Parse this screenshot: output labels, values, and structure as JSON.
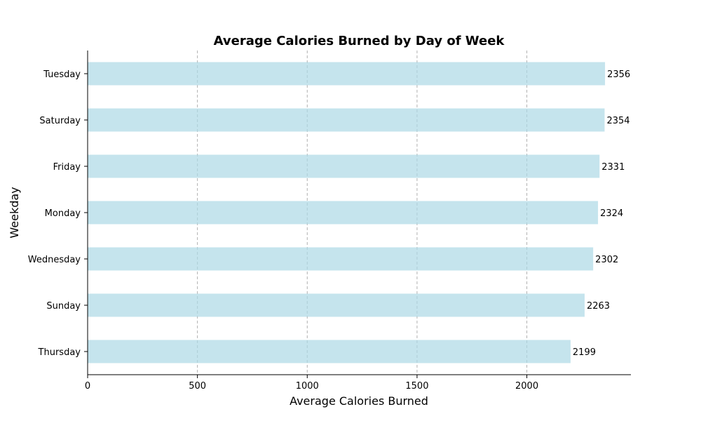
{
  "chart_data": {
    "type": "bar",
    "orientation": "horizontal",
    "title": "Average Calories Burned by Day of Week",
    "xlabel": "Average Calories Burned",
    "ylabel": "Weekday",
    "categories": [
      "Tuesday",
      "Saturday",
      "Friday",
      "Monday",
      "Wednesday",
      "Sunday",
      "Thursday"
    ],
    "values": [
      2356,
      2354,
      2331,
      2324,
      2302,
      2263,
      2199
    ],
    "data_labels": [
      "2356",
      "2354",
      "2331",
      "2324",
      "2302",
      "2263",
      "2199"
    ],
    "xlim": [
      0,
      2473.8
    ],
    "xticks": [
      0,
      500,
      1000,
      1500,
      2000
    ],
    "xtick_labels": [
      "0",
      "500",
      "1000",
      "1500",
      "2000"
    ],
    "grid": "x-dashed",
    "bar_color": "#add8e6",
    "bar_opacity": 0.7,
    "grid_color": "#b0b0b0"
  }
}
